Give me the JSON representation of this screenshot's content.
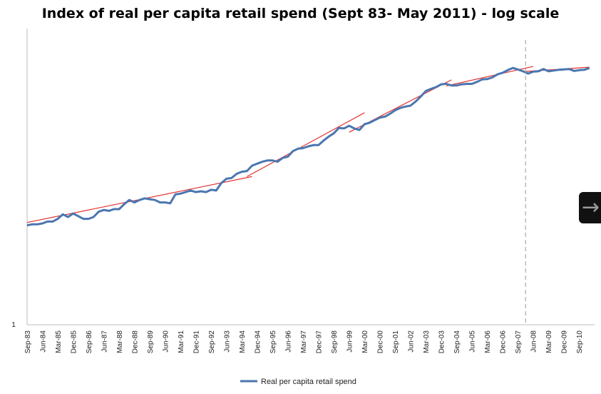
{
  "chart_data": {
    "type": "line",
    "title": "Index of real per capita retail spend (Sept 83- May 2011) - log scale",
    "xlabel": "",
    "ylabel": "",
    "y_scale": "log",
    "y_ticks": [
      {
        "value": 1,
        "label": "1"
      }
    ],
    "x_tick_labels": [
      "Sep-83",
      "Jun-84",
      "Mar-85",
      "Dec-85",
      "Sep-86",
      "Jun-87",
      "Mar-88",
      "Dec-88",
      "Sep-89",
      "Jun-90",
      "Mar-91",
      "Dec-91",
      "Sep-92",
      "Jun-93",
      "Mar-94",
      "Dec-94",
      "Sep-95",
      "Jun-96",
      "Mar-97",
      "Dec-97",
      "Sep-98",
      "Jun-99",
      "Mar-00",
      "Dec-00",
      "Sep-01",
      "Jun-02",
      "Mar-03",
      "Dec-03",
      "Sep-04",
      "Jun-05",
      "Mar-06",
      "Dec-06",
      "Sep-07",
      "Jun-08",
      "Mar-09",
      "Dec-09",
      "Sep-10"
    ],
    "x_index_range": [
      0,
      111
    ],
    "vertical_marker": {
      "x_index": 97.5,
      "style": "dashed"
    },
    "series": [
      {
        "name": "Real per capita retail spend",
        "color": "#4a76b0",
        "x": [
          0,
          1,
          2,
          3,
          4,
          5,
          6,
          7,
          8,
          9,
          10,
          11,
          12,
          13,
          14,
          15,
          16,
          17,
          18,
          19,
          20,
          21,
          22,
          23,
          24,
          25,
          26,
          27,
          28,
          29,
          30,
          31,
          32,
          33,
          34,
          35,
          36,
          37,
          38,
          39,
          40,
          41,
          42,
          43,
          44,
          45,
          46,
          47,
          48,
          49,
          50,
          51,
          52,
          53,
          54,
          55,
          56,
          57,
          58,
          59,
          60,
          61,
          62,
          63,
          64,
          65,
          66,
          67,
          68,
          69,
          70,
          71,
          72,
          73,
          74,
          75,
          76,
          77,
          78,
          79,
          80,
          81,
          82,
          83,
          84,
          85,
          86,
          87,
          88,
          89,
          90,
          91,
          92,
          93,
          94,
          95,
          96,
          97,
          98,
          99,
          100,
          101,
          102,
          103,
          104,
          105,
          106,
          107,
          108,
          109,
          110
        ],
        "values": [
          1.8,
          1.81,
          1.81,
          1.82,
          1.84,
          1.84,
          1.87,
          1.92,
          1.89,
          1.93,
          1.9,
          1.87,
          1.87,
          1.89,
          1.95,
          1.97,
          1.96,
          1.98,
          1.98,
          2.04,
          2.09,
          2.06,
          2.09,
          2.11,
          2.1,
          2.09,
          2.06,
          2.06,
          2.05,
          2.16,
          2.17,
          2.19,
          2.21,
          2.19,
          2.2,
          2.19,
          2.22,
          2.21,
          2.31,
          2.37,
          2.38,
          2.44,
          2.47,
          2.48,
          2.56,
          2.59,
          2.62,
          2.64,
          2.64,
          2.62,
          2.68,
          2.7,
          2.79,
          2.83,
          2.84,
          2.87,
          2.89,
          2.89,
          2.97,
          3.04,
          3.1,
          3.2,
          3.19,
          3.24,
          3.19,
          3.16,
          3.27,
          3.3,
          3.35,
          3.4,
          3.42,
          3.48,
          3.55,
          3.6,
          3.63,
          3.65,
          3.74,
          3.85,
          3.98,
          4.03,
          4.07,
          4.14,
          4.15,
          4.11,
          4.11,
          4.14,
          4.15,
          4.15,
          4.2,
          4.26,
          4.27,
          4.31,
          4.39,
          4.43,
          4.5,
          4.56,
          4.52,
          4.47,
          4.41,
          4.46,
          4.47,
          4.53,
          4.47,
          4.49,
          4.51,
          4.52,
          4.53,
          4.48,
          4.5,
          4.51,
          4.56
        ]
      }
    ],
    "trend_lines": [
      {
        "color": "#e03030",
        "x": [
          0,
          44
        ],
        "values": [
          1.83,
          2.4
        ]
      },
      {
        "color": "#e03030",
        "x": [
          43,
          66
        ],
        "values": [
          2.4,
          3.5
        ]
      },
      {
        "color": "#e03030",
        "x": [
          63,
          83
        ],
        "values": [
          3.12,
          4.25
        ]
      },
      {
        "color": "#e03030",
        "x": [
          82,
          99
        ],
        "values": [
          4.1,
          4.6
        ]
      },
      {
        "color": "#e03030",
        "x": [
          97,
          110
        ],
        "values": [
          4.46,
          4.58
        ]
      }
    ],
    "legend": {
      "position": "bottom",
      "entries": [
        "Real per capita retail spend"
      ]
    }
  },
  "ui": {
    "nav_arrow_glyph": "→"
  }
}
